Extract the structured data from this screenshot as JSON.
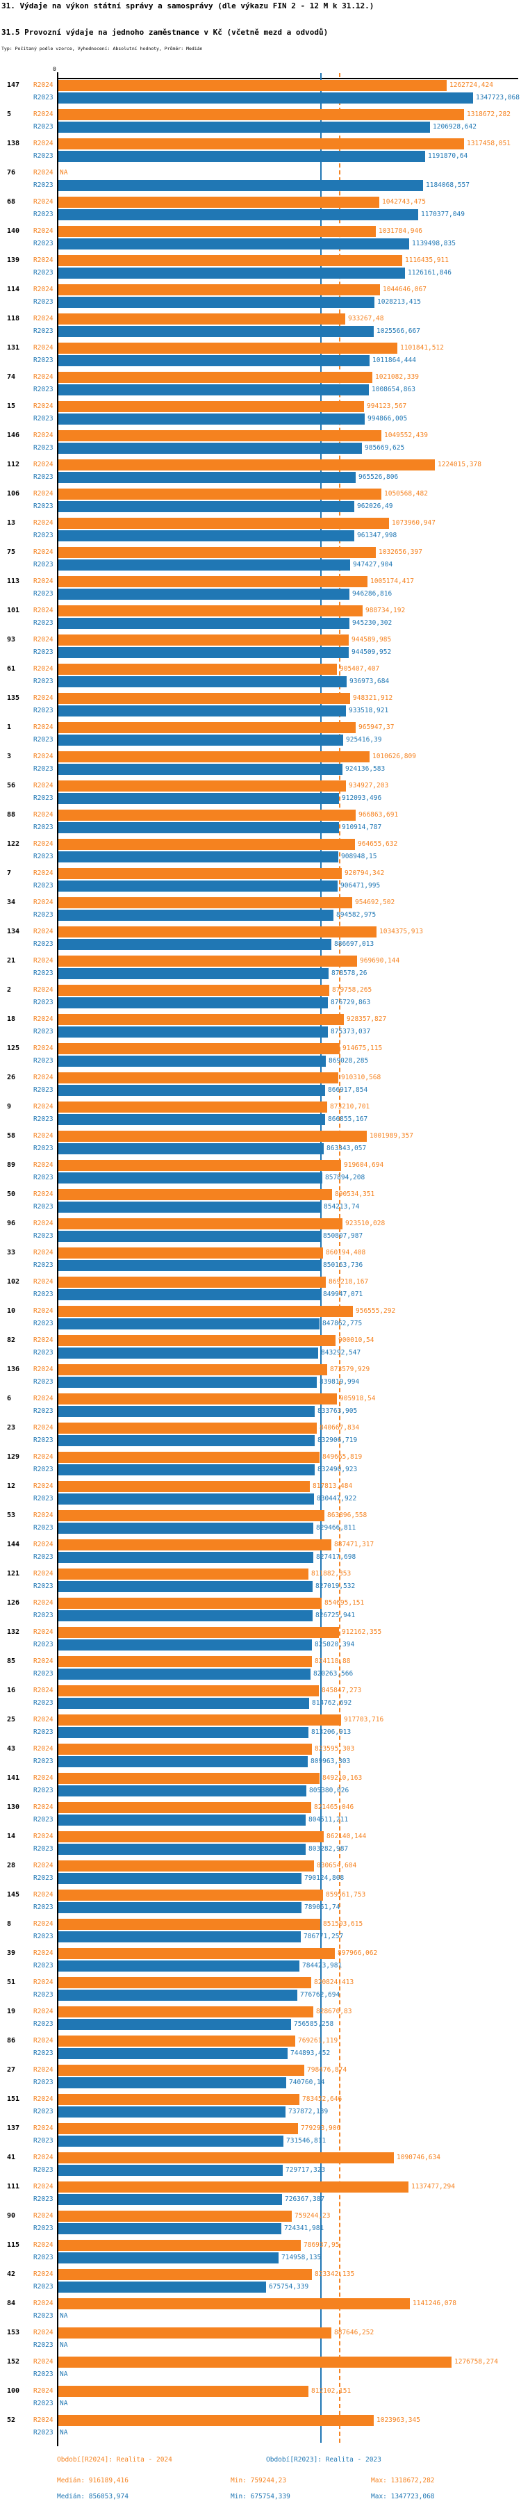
{
  "title": "31. Výdaje na výkon státní správy a samosprávy (dle výkazu FIN 2 - 12 M k 31.12.)",
  "subtitle": "31.5 Provozní výdaje na jednoho zaměstnance v Kč (včetně mezd a odvodů)",
  "meta_line": "Typ: Počítaný podle vzorce, Vyhodnocení: Absolutní hodnoty, Průměr: Medián",
  "axis": {
    "zero_label": "0"
  },
  "colors": {
    "r2024": "#f5821f",
    "r2023": "#2077b4",
    "axis": "#000000"
  },
  "series_labels": {
    "r2024": "R2024",
    "r2023": "R2023"
  },
  "na_text": "NA",
  "chart_data": {
    "type": "bar",
    "orientation": "horizontal",
    "title": "31.5 Provozní výdaje na jednoho zaměstnance v Kč (včetně mezd a odvodů)",
    "value_format": "decimal comma, Kč",
    "axis_min": 0,
    "axis_max": 1347723.068,
    "legend_position": "bottom",
    "median_lines": {
      "R2024": 916189.416,
      "R2023": 856053.974
    },
    "series_names": [
      "R2024",
      "R2023"
    ],
    "rows": [
      [
        "147",
        "1262724,424",
        "1347723,068"
      ],
      [
        "5",
        "1318672,282",
        "1206928,642"
      ],
      [
        "138",
        "1317458,051",
        "1191870,64"
      ],
      [
        "76",
        "NA",
        "1184068,557"
      ],
      [
        "68",
        "1042743,475",
        "1170377,049"
      ],
      [
        "140",
        "1031784,946",
        "1139498,835"
      ],
      [
        "139",
        "1116435,911",
        "1126161,846"
      ],
      [
        "114",
        "1044646,067",
        "1028213,415"
      ],
      [
        "118",
        "933267,48",
        "1025566,667"
      ],
      [
        "131",
        "1101841,512",
        "1011864,444"
      ],
      [
        "74",
        "1021082,339",
        "1008654,863"
      ],
      [
        "15",
        "994123,567",
        "994866,005"
      ],
      [
        "146",
        "1049552,439",
        "985669,625"
      ],
      [
        "112",
        "1224015,378",
        "965526,806"
      ],
      [
        "106",
        "1050568,482",
        "962026,49"
      ],
      [
        "13",
        "1073960,947",
        "961347,998"
      ],
      [
        "75",
        "1032656,397",
        "947427,904"
      ],
      [
        "113",
        "1005174,417",
        "946286,816"
      ],
      [
        "101",
        "988734,192",
        "945230,302"
      ],
      [
        "93",
        "944589,985",
        "944509,952"
      ],
      [
        "61",
        "905407,407",
        "936973,684"
      ],
      [
        "135",
        "948321,912",
        "933518,921"
      ],
      [
        "1",
        "965947,37",
        "925416,39"
      ],
      [
        "3",
        "1010626,809",
        "924136,583"
      ],
      [
        "56",
        "934927,203",
        "912093,496"
      ],
      [
        "88",
        "966863,691",
        "910914,787"
      ],
      [
        "122",
        "964655,632",
        "908948,15"
      ],
      [
        "7",
        "920794,342",
        "906471,995"
      ],
      [
        "34",
        "954692,502",
        "894582,975"
      ],
      [
        "134",
        "1034375,913",
        "886697,013"
      ],
      [
        "21",
        "969690,144",
        "878578,26"
      ],
      [
        "2",
        "879758,265",
        "876729,863"
      ],
      [
        "18",
        "928357,827",
        "875373,037"
      ],
      [
        "125",
        "914675,115",
        "869028,285"
      ],
      [
        "26",
        "910310,568",
        "866917,854"
      ],
      [
        "9",
        "873210,701",
        "866855,167"
      ],
      [
        "58",
        "1001989,357",
        "863343,057"
      ],
      [
        "89",
        "919604,694",
        "857894,208"
      ],
      [
        "50",
        "890534,351",
        "854213,74"
      ],
      [
        "96",
        "923510,028",
        "850807,987"
      ],
      [
        "33",
        "860194,408",
        "850163,736"
      ],
      [
        "102",
        "869218,167",
        "849947,071"
      ],
      [
        "10",
        "956555,292",
        "847862,775"
      ],
      [
        "82",
        "900010,54",
        "843292,547"
      ],
      [
        "136",
        "873579,929",
        "839819,994"
      ],
      [
        "6",
        "905918,54",
        "833763,905"
      ],
      [
        "23",
        "840667,834",
        "832906,719"
      ],
      [
        "129",
        "849665,819",
        "832490,923"
      ],
      [
        "12",
        "817813,484",
        "830447,922"
      ],
      [
        "53",
        "863896,558",
        "829466,811"
      ],
      [
        "144",
        "887471,317",
        "827417,698"
      ],
      [
        "121",
        "811882,353",
        "827019,532"
      ],
      [
        "126",
        "854695,151",
        "826725,941"
      ],
      [
        "132",
        "912162,355",
        "825020,394"
      ],
      [
        "85",
        "824118,88",
        "820263,566"
      ],
      [
        "16",
        "845847,273",
        "814762,692"
      ],
      [
        "25",
        "917703,716",
        "813206,913"
      ],
      [
        "43",
        "823595,303",
        "809963,303"
      ],
      [
        "141",
        "849210,163",
        "805380,026"
      ],
      [
        "130",
        "821465,046",
        "804511,211"
      ],
      [
        "14",
        "862140,144",
        "803282,987"
      ],
      [
        "28",
        "830654,604",
        "790124,808"
      ],
      [
        "145",
        "859561,753",
        "789051,74"
      ],
      [
        "8",
        "851503,615",
        "786771,257"
      ],
      [
        "39",
        "897966,062",
        "784423,981"
      ],
      [
        "51",
        "820824,413",
        "776762,694"
      ],
      [
        "19",
        "828670,83",
        "756585,258"
      ],
      [
        "86",
        "769261,119",
        "744893,452"
      ],
      [
        "27",
        "798476,874",
        "740760,14"
      ],
      [
        "151",
        "783452,646",
        "737872,139"
      ],
      [
        "137",
        "779293,906",
        "731546,811"
      ],
      [
        "41",
        "1090746,634",
        "729717,323"
      ],
      [
        "111",
        "1137477,294",
        "726367,387"
      ],
      [
        "90",
        "759244,23",
        "724341,981"
      ],
      [
        "115",
        "786937,95",
        "714958,135"
      ],
      [
        "42",
        "823342,135",
        "675754,339"
      ],
      [
        "84",
        "1141246,078",
        "NA"
      ],
      [
        "153",
        "887646,252",
        "NA"
      ],
      [
        "152",
        "1276758,274",
        "NA"
      ],
      [
        "100",
        "812102,151",
        "NA"
      ],
      [
        "52",
        "1023963,345",
        "NA"
      ]
    ]
  },
  "legend": {
    "r2024_period": "Období[R2024]: Realita - 2024",
    "r2023_period": "Období[R2023]: Realita - 2023",
    "r2024_stats": {
      "median": "Medián: 916189,416",
      "min": "Min: 759244,23",
      "max": "Max: 1318672,282"
    },
    "r2023_stats": {
      "median": "Medián: 856053,974",
      "min": "Min: 675754,339",
      "max": "Max: 1347723,068"
    }
  }
}
